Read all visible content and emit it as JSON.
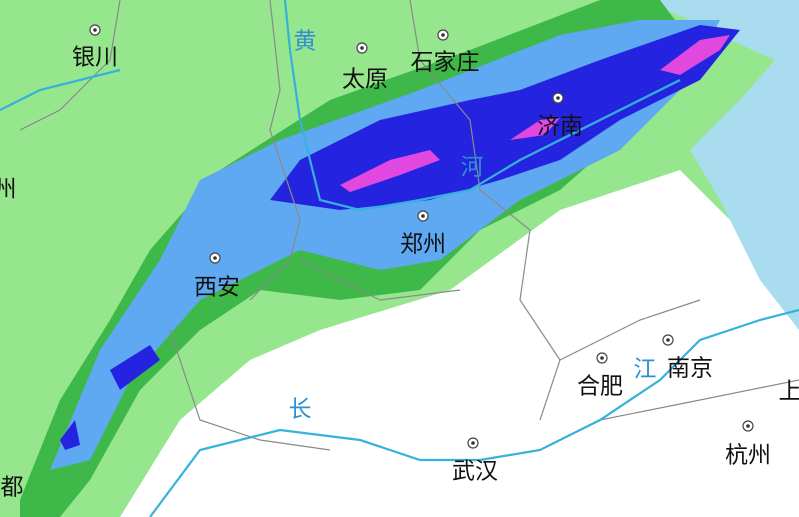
{
  "cities": [
    {
      "label": "银川"
    },
    {
      "label": "太原"
    },
    {
      "label": "石家庄"
    },
    {
      "label": "济南"
    },
    {
      "label": "郑州"
    },
    {
      "label": "西安"
    },
    {
      "label": "合肥"
    },
    {
      "label": "南京"
    },
    {
      "label": "武汉"
    },
    {
      "label": "杭州"
    }
  ],
  "edge_labels": [
    {
      "label": "都"
    },
    {
      "label": "上"
    },
    {
      "label": "州"
    }
  ],
  "rivers": [
    {
      "label": "黄"
    },
    {
      "label": "河"
    },
    {
      "label": "长"
    },
    {
      "label": "江"
    }
  ]
}
